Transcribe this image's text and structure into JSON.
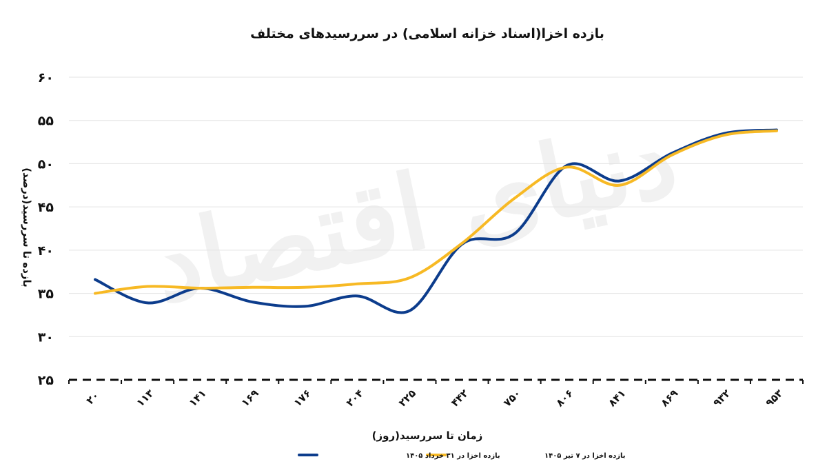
{
  "chart_data": {
    "type": "line",
    "title": "بازده اخزا(اسناد خزانه اسلامی) در سررسیدهای مختلف",
    "xlabel": "زمان تا سررسید(روز)",
    "ylabel": "بازده تا سررسید(درصد)",
    "categories": [
      "۲۰",
      "۱۱۳",
      "۱۴۱",
      "۱۶۹",
      "۱۷۶",
      "۲۰۴",
      "۲۲۵",
      "۴۴۲",
      "۷۵۰",
      "۸۰۶",
      "۸۴۱",
      "۸۶۹",
      "۹۳۲",
      "۹۵۳"
    ],
    "ylim": [
      25,
      60
    ],
    "yticks": [
      25,
      30,
      35,
      40,
      45,
      50,
      55,
      60
    ],
    "ytick_labels": [
      "۲۵",
      "۳۰",
      "۳۵",
      "۴۰",
      "۴۵",
      "۵۰",
      "۵۵",
      "۶۰"
    ],
    "grid": true,
    "legend_position": "bottom",
    "series": [
      {
        "name": "بازده اخزا در ۳۱ خرداد ۱۴۰۵",
        "color": "#0c3c8c",
        "values": [
          36.6,
          33.9,
          35.6,
          34.0,
          33.5,
          34.7,
          33.0,
          40.7,
          41.9,
          49.8,
          48.0,
          51.2,
          53.5,
          53.9
        ]
      },
      {
        "name": "بازده اخزا در ۷ تیر ۱۴۰۵",
        "color": "#f7b924",
        "values": [
          35.0,
          35.8,
          35.6,
          35.7,
          35.7,
          36.1,
          36.8,
          40.8,
          46.0,
          49.6,
          47.5,
          51.0,
          53.3,
          53.8
        ]
      }
    ]
  },
  "watermark": "دنیای اقتصاد"
}
